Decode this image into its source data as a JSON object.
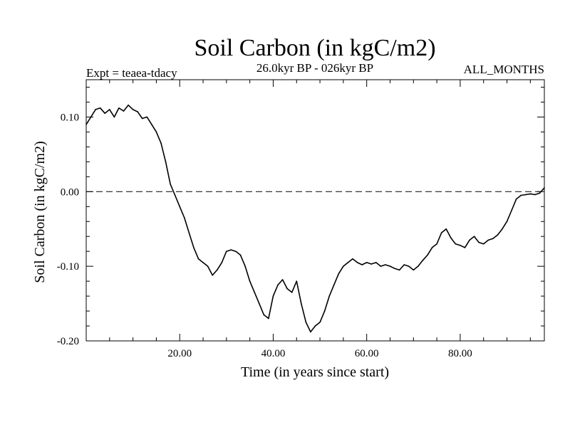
{
  "chart_data": {
    "type": "line",
    "title": "Soil Carbon (in kgC/m2)",
    "subtitle": "26.0kyr BP - 026kyr BP",
    "experiment_label": "Expt = teaea-tdacy",
    "months_label": "ALL_MONTHS",
    "xlabel": "Time (in years since start)",
    "ylabel": "Soil Carbon (in kgC/m2)",
    "xlim": [
      0,
      98
    ],
    "ylim": [
      -0.2,
      0.15
    ],
    "x_ticks": [
      20,
      40,
      60,
      80
    ],
    "x_tick_labels": [
      "20.00",
      "40.00",
      "60.00",
      "80.00"
    ],
    "y_ticks": [
      -0.2,
      -0.1,
      0.0,
      0.1
    ],
    "y_tick_labels": [
      "-0.20",
      "-0.10",
      "0.00",
      "0.10"
    ],
    "reference_line": {
      "y": 0.0,
      "style": "dashed"
    },
    "series": [
      {
        "name": "soil_carbon",
        "x": [
          0,
          1,
          2,
          3,
          4,
          5,
          6,
          7,
          8,
          9,
          10,
          11,
          12,
          13,
          14,
          15,
          16,
          17,
          18,
          19,
          20,
          21,
          22,
          23,
          24,
          25,
          26,
          27,
          28,
          29,
          30,
          31,
          32,
          33,
          34,
          35,
          36,
          37,
          38,
          39,
          40,
          41,
          42,
          43,
          44,
          45,
          46,
          47,
          48,
          49,
          50,
          51,
          52,
          53,
          54,
          55,
          56,
          57,
          58,
          59,
          60,
          61,
          62,
          63,
          64,
          65,
          66,
          67,
          68,
          69,
          70,
          71,
          72,
          73,
          74,
          75,
          76,
          77,
          78,
          79,
          80,
          81,
          82,
          83,
          84,
          85,
          86,
          87,
          88,
          89,
          90,
          91,
          92,
          93,
          94,
          95,
          96,
          97,
          98
        ],
        "values": [
          0.09,
          0.1,
          0.11,
          0.112,
          0.105,
          0.11,
          0.1,
          0.112,
          0.108,
          0.116,
          0.11,
          0.107,
          0.098,
          0.1,
          0.09,
          0.08,
          0.065,
          0.04,
          0.01,
          -0.005,
          -0.02,
          -0.035,
          -0.055,
          -0.075,
          -0.09,
          -0.095,
          -0.1,
          -0.112,
          -0.105,
          -0.095,
          -0.08,
          -0.078,
          -0.08,
          -0.085,
          -0.1,
          -0.12,
          -0.135,
          -0.15,
          -0.165,
          -0.17,
          -0.14,
          -0.125,
          -0.118,
          -0.13,
          -0.135,
          -0.12,
          -0.15,
          -0.175,
          -0.188,
          -0.18,
          -0.175,
          -0.16,
          -0.14,
          -0.125,
          -0.11,
          -0.1,
          -0.095,
          -0.09,
          -0.095,
          -0.098,
          -0.095,
          -0.097,
          -0.095,
          -0.1,
          -0.098,
          -0.1,
          -0.103,
          -0.105,
          -0.098,
          -0.1,
          -0.105,
          -0.1,
          -0.092,
          -0.085,
          -0.075,
          -0.07,
          -0.055,
          -0.05,
          -0.062,
          -0.07,
          -0.072,
          -0.075,
          -0.065,
          -0.06,
          -0.068,
          -0.07,
          -0.065,
          -0.063,
          -0.058,
          -0.05,
          -0.04,
          -0.025,
          -0.01,
          -0.005,
          -0.004,
          -0.003,
          -0.004,
          -0.002,
          0.005
        ]
      }
    ]
  }
}
